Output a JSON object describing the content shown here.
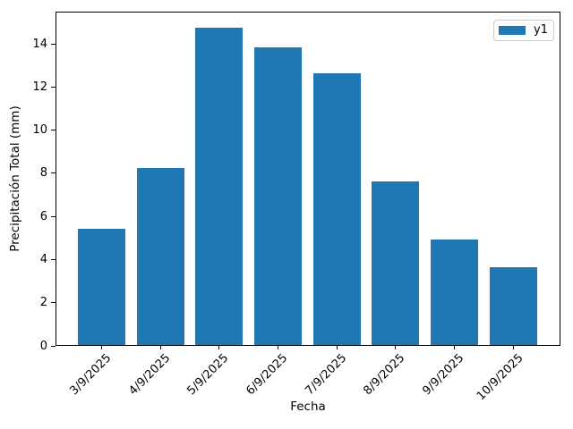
{
  "colors": {
    "bar": "#1f77b4",
    "spine": "#000000",
    "legend_border": "#cccccc",
    "background": "#ffffff",
    "text": "#000000"
  },
  "chart_data": {
    "type": "bar",
    "title": "",
    "xlabel": "Fecha",
    "ylabel": "Precipitación Total (mm)",
    "categories": [
      "3/9/2025",
      "4/9/2025",
      "5/9/2025",
      "6/9/2025",
      "7/9/2025",
      "8/9/2025",
      "9/9/2025",
      "10/9/2025"
    ],
    "series": [
      {
        "name": "y1",
        "color": "#1f77b4",
        "values": [
          5.4,
          8.2,
          14.7,
          13.8,
          12.6,
          7.6,
          4.9,
          3.6
        ]
      }
    ],
    "yticks": [
      0,
      2,
      4,
      6,
      8,
      10,
      12,
      14
    ],
    "ylim": [
      0,
      15.5
    ],
    "bar_width_ratio": 0.8,
    "xtick_rotation": 45,
    "grid": false,
    "legend": {
      "position": "upper right",
      "entries": [
        {
          "label": "y1",
          "color": "#1f77b4"
        }
      ]
    }
  }
}
